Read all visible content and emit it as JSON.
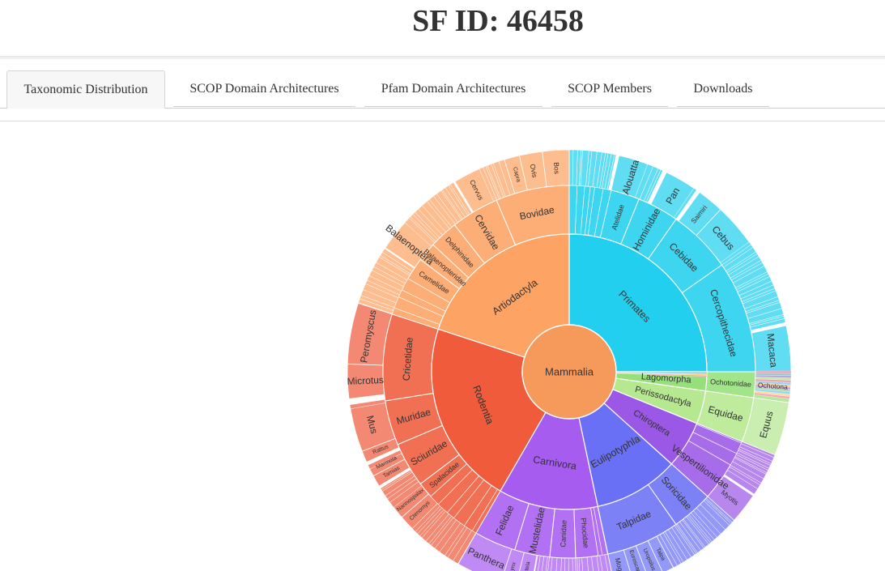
{
  "page": {
    "title": "SF ID: 46458"
  },
  "tabs": [
    {
      "label": "Taxonomic Distribution",
      "active": true
    },
    {
      "label": "SCOP Domain Architectures",
      "active": false
    },
    {
      "label": "Pfam Domain Architectures",
      "active": false
    },
    {
      "label": "SCOP Members",
      "active": false
    },
    {
      "label": "Downloads",
      "active": false
    }
  ],
  "chart_data": {
    "type": "sunburst",
    "root": {
      "label": "Mammalia",
      "color": "#f69a5c"
    },
    "orders": [
      {
        "label": "Primates",
        "start": 0,
        "end": 90,
        "color": "#22cfee",
        "families": [
          {
            "label": "Cercopithecidae",
            "start": 0,
            "end": 35,
            "genera": [
              {
                "label": "Macaca",
                "start": 0,
                "end": 12
              }
            ]
          },
          {
            "label": "Cebidae",
            "start": 35,
            "end": 55,
            "genera": [
              {
                "label": "Cebus",
                "start": 35,
                "end": 47
              },
              {
                "label": "Saimiri",
                "start": 47,
                "end": 54
              }
            ]
          },
          {
            "label": "Hominidae",
            "start": 55,
            "end": 68,
            "genera": [
              {
                "label": "Pan",
                "start": 55,
                "end": 64
              }
            ]
          },
          {
            "label": "Atelidae",
            "start": 68,
            "end": 77,
            "genera": [
              {
                "label": "Alouatta",
                "start": 68,
                "end": 77
              }
            ]
          }
        ]
      },
      {
        "label": "Artiodactyla",
        "start": 90,
        "end": 162,
        "color": "#fda364",
        "families": [
          {
            "label": "Bovidae",
            "start": 90,
            "end": 113,
            "genera": [
              {
                "label": "Bos",
                "start": 90,
                "end": 97
              },
              {
                "label": "Ovis",
                "start": 97,
                "end": 103
              },
              {
                "label": "Capra",
                "start": 103,
                "end": 107
              }
            ]
          },
          {
            "label": "Cervidae",
            "start": 113,
            "end": 128,
            "genera": [
              {
                "label": "Cervus",
                "start": 113,
                "end": 121
              }
            ]
          },
          {
            "label": "Delphinidae",
            "start": 128,
            "end": 137,
            "genera": []
          },
          {
            "label": "Balaenopteridae",
            "start": 137,
            "end": 143,
            "genera": [
              {
                "label": "Balaenoptera",
                "start": 137,
                "end": 146
              }
            ]
          },
          {
            "label": "Camelidae",
            "start": 143,
            "end": 150,
            "genera": []
          }
        ]
      },
      {
        "label": "Rodentia",
        "start": 162,
        "end": 240,
        "color": "#ef5b3b",
        "families": [
          {
            "label": "Cricetidae",
            "start": 162,
            "end": 189,
            "genera": [
              {
                "label": "Peromyscus",
                "start": 162,
                "end": 178
              },
              {
                "label": "Microtus",
                "start": 178,
                "end": 187
              }
            ]
          },
          {
            "label": "Muridae",
            "start": 189,
            "end": 203,
            "genera": [
              {
                "label": "Mus",
                "start": 189,
                "end": 201
              },
              {
                "label": "Rattus",
                "start": 201,
                "end": 204
              }
            ]
          },
          {
            "label": "Sciuridae",
            "start": 203,
            "end": 217,
            "genera": [
              {
                "label": "Marmota",
                "start": 205,
                "end": 208
              },
              {
                "label": "Tamias",
                "start": 208,
                "end": 211
              }
            ]
          },
          {
            "label": "Spalacidae",
            "start": 217,
            "end": 222,
            "genera": [
              {
                "label": "Nannospalax",
                "start": 217,
                "end": 221
              },
              {
                "label": "Ctenomys",
                "start": 221,
                "end": 225
              }
            ]
          }
        ]
      },
      {
        "label": "Carnivora",
        "start": 240,
        "end": 282,
        "color": "#a75cf0",
        "families": [
          {
            "label": "Felidae",
            "start": 240,
            "end": 253,
            "genera": [
              {
                "label": "Panthera",
                "start": 240,
                "end": 252
              },
              {
                "label": "Lynx",
                "start": 252,
                "end": 256
              }
            ]
          },
          {
            "label": "Mustelidae",
            "start": 253,
            "end": 264,
            "genera": [
              {
                "label": "Mustela",
                "start": 256,
                "end": 260
              }
            ]
          },
          {
            "label": "Canidae",
            "start": 264,
            "end": 272,
            "genera": []
          },
          {
            "label": "Phocidae",
            "start": 272,
            "end": 279,
            "genera": []
          }
        ]
      },
      {
        "label": "Eulipotyphla",
        "start": 282,
        "end": 318,
        "color": "#6a70f5",
        "families": [
          {
            "label": "Talpidae",
            "start": 282,
            "end": 305,
            "genera": [
              {
                "label": "Mogera",
                "start": 282,
                "end": 287
              },
              {
                "label": "Euroscaptor",
                "start": 287,
                "end": 291
              },
              {
                "label": "Uropsilus",
                "start": 291,
                "end": 295
              },
              {
                "label": "Talpa",
                "start": 295,
                "end": 298
              }
            ]
          },
          {
            "label": "Soricidae",
            "start": 305,
            "end": 318,
            "genera": []
          }
        ]
      },
      {
        "label": "Chiroptera",
        "start": 318,
        "end": 338,
        "color": "#9b58e6",
        "families": [
          {
            "label": "Vespertilionidae",
            "start": 318,
            "end": 330,
            "genera": [
              {
                "label": "Myotis",
                "start": 318,
                "end": 326
              }
            ]
          }
        ]
      },
      {
        "label": "Perissodactyla",
        "start": 338,
        "end": 352,
        "color": "#b6e890",
        "families": [
          {
            "label": "Equidae",
            "start": 338,
            "end": 352,
            "genera": [
              {
                "label": "Equus",
                "start": 338,
                "end": 352
              }
            ]
          }
        ]
      },
      {
        "label": "Lagomorpha",
        "start": 352,
        "end": 360,
        "color": "#95e07a",
        "families": [
          {
            "label": "Ochotonidae",
            "start": 352,
            "end": 360,
            "genera": [
              {
                "label": "Ochotona",
                "start": 352,
                "end": 360
              }
            ]
          }
        ]
      }
    ]
  }
}
